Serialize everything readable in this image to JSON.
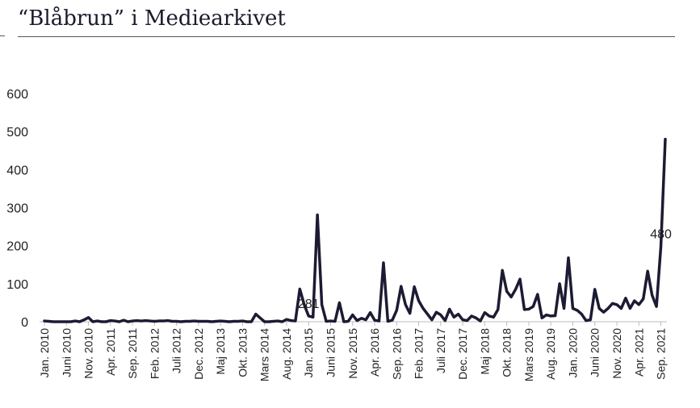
{
  "chart_data": {
    "type": "line",
    "title": "“Blåbrun” i Mediearkivet",
    "xlabel": "",
    "ylabel": "",
    "ylim": [
      0,
      600
    ],
    "yticks": [
      0,
      100,
      200,
      300,
      400,
      500,
      600
    ],
    "grid": false,
    "line_color": "#1c1b33",
    "tick_labels": [
      "Jan. 2010",
      "Juni 2010",
      "Nov. 2010",
      "Apr. 2011",
      "Sep. 2011",
      "Feb. 2012",
      "Juli 2012",
      "Dec. 2012",
      "Maj 2013",
      "Okt. 2013",
      "Mars 2014",
      "Aug. 2014",
      "Jan. 2015",
      "Juni 2015",
      "Nov. 2015",
      "Apr. 2016",
      "Sep. 2016",
      "Feb. 2017",
      "Juli 2017",
      "Dec. 2017",
      "Maj 2018",
      "Okt. 2018",
      "Mars 2019",
      "Aug. 2019",
      "Jan. 2020",
      "Juni 2020",
      "Nov. 2020",
      "Apr. 2021",
      "Sep. 2021"
    ],
    "annotations": [
      {
        "index": 60,
        "label": "281"
      },
      {
        "index": 140,
        "label": "480"
      }
    ],
    "values": [
      2,
      1,
      0,
      0,
      0,
      0,
      0,
      2,
      0,
      5,
      11,
      0,
      2,
      0,
      0,
      3,
      2,
      0,
      4,
      0,
      2,
      3,
      2,
      3,
      2,
      1,
      2,
      2,
      3,
      1,
      1,
      0,
      1,
      1,
      2,
      1,
      1,
      1,
      0,
      1,
      2,
      1,
      0,
      1,
      1,
      2,
      0,
      0,
      20,
      10,
      0,
      0,
      1,
      2,
      0,
      6,
      3,
      2,
      86,
      45,
      15,
      12,
      281,
      45,
      1,
      2,
      1,
      50,
      0,
      1,
      18,
      3,
      9,
      5,
      24,
      4,
      2,
      155,
      1,
      4,
      30,
      93,
      45,
      22,
      92,
      55,
      35,
      20,
      5,
      25,
      18,
      3,
      33,
      12,
      20,
      5,
      3,
      15,
      10,
      2,
      24,
      15,
      12,
      32,
      135,
      80,
      65,
      85,
      112,
      32,
      33,
      40,
      72,
      10,
      18,
      15,
      16,
      100,
      35,
      168,
      35,
      30,
      20,
      3,
      5,
      85,
      35,
      25,
      35,
      48,
      45,
      35,
      62,
      35,
      55,
      45,
      60,
      133,
      70,
      40,
      198,
      480
    ]
  }
}
